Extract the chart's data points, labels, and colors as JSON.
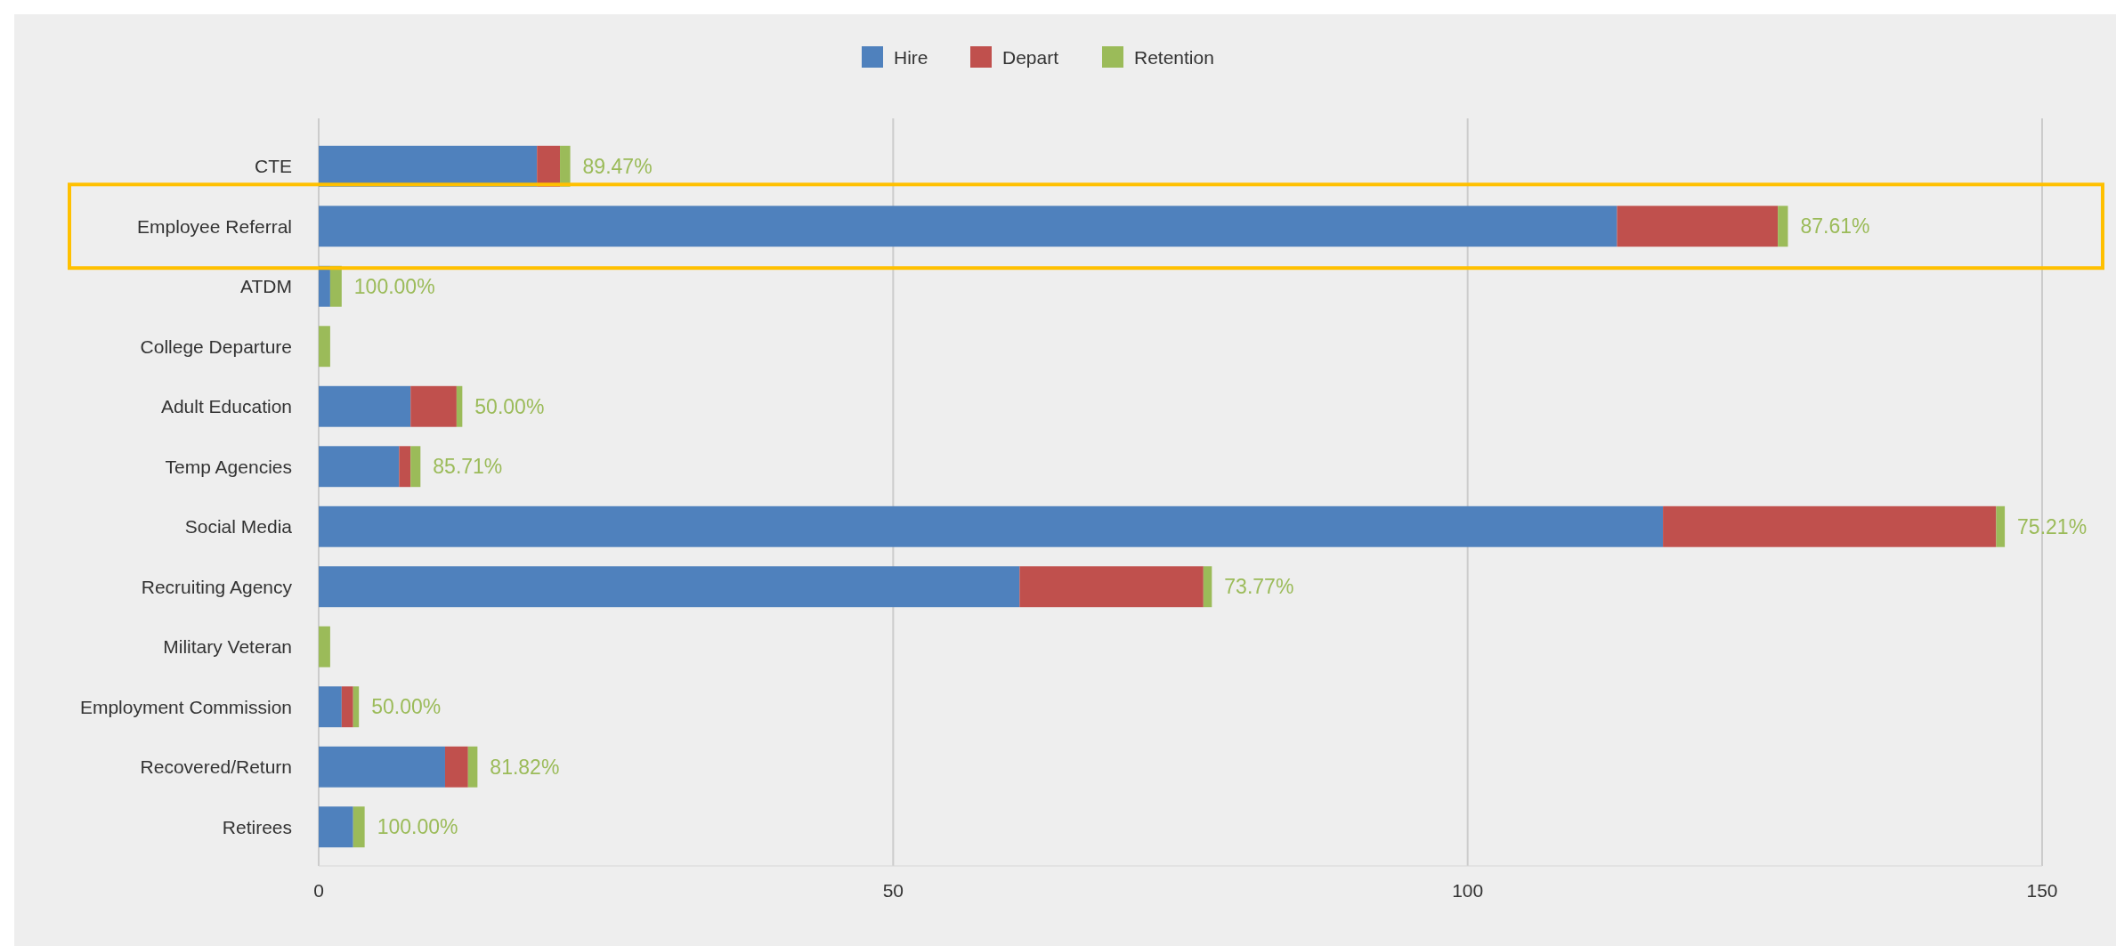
{
  "chart_data": {
    "type": "bar",
    "orientation": "horizontal",
    "stacked": true,
    "categories": [
      "CTE",
      "Employee Referral",
      "ATDM",
      "College Departure",
      "Adult Education",
      "Temp Agencies",
      "Social Media",
      "Recruiting Agency",
      "Military Veteran",
      "Employment Commission",
      "Recovered/Return",
      "Retirees"
    ],
    "series": [
      {
        "name": "Hire",
        "color": "#4f81bd",
        "values": [
          19,
          113,
          1,
          0,
          8,
          7,
          117,
          61,
          0,
          2,
          11,
          3
        ]
      },
      {
        "name": "Depart",
        "color": "#c0504d",
        "values": [
          2,
          14,
          0,
          0,
          4,
          1,
          29,
          16,
          0,
          1,
          2,
          0
        ]
      },
      {
        "name": "Retention",
        "color": "#9bbb59",
        "values": [
          0.8947,
          0.8761,
          1,
          1,
          0.5,
          0.8571,
          0.7521,
          0.7377,
          1,
          0.5,
          0.8182,
          1
        ],
        "value_labels": [
          "89.47%",
          "87.61%",
          "100.00%",
          null,
          "50.00%",
          "85.71%",
          "75.21%",
          "73.77%",
          null,
          "50.00%",
          "81.82%",
          "100.00%"
        ]
      }
    ],
    "xlim": [
      0,
      150
    ],
    "xticks": [
      0,
      50,
      100,
      150
    ],
    "grid": "x",
    "legend": "top"
  }
}
